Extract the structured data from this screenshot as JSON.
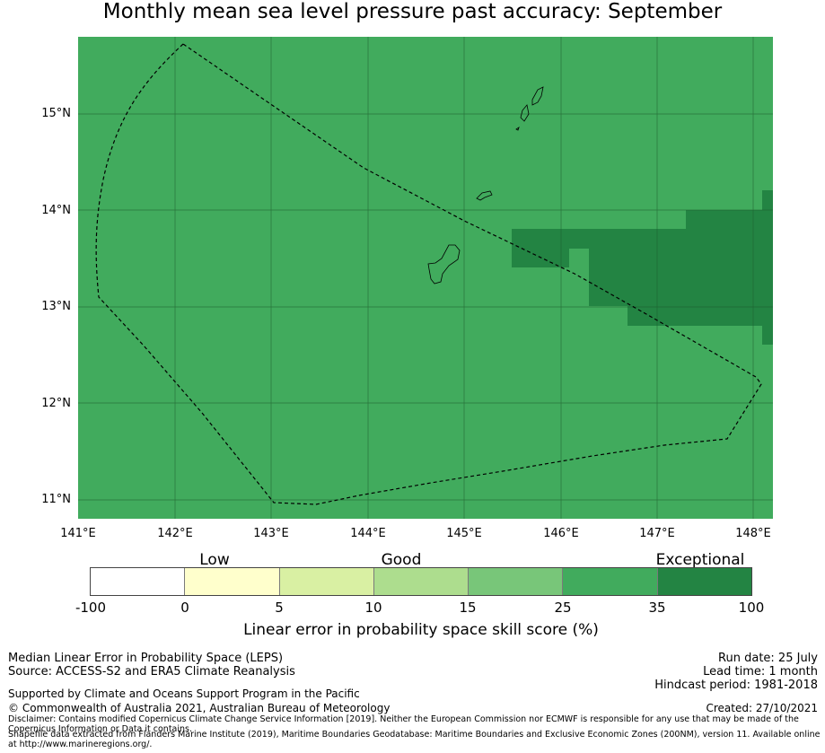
{
  "title": "Monthly mean sea level pressure past accuracy: September",
  "colors": {
    "ocean_score": "#41ab5d",
    "exceptional": "#238443",
    "grid": "#1d5a2d",
    "outline": "#000000"
  },
  "map": {
    "y_ticks": [
      "15°N",
      "14°N",
      "13°N",
      "12°N",
      "11°N"
    ],
    "x_ticks": [
      "141°E",
      "142°E",
      "143°E",
      "144°E",
      "145°E",
      "146°E",
      "147°E",
      "148°E"
    ],
    "lon_range": [
      141,
      148.2
    ],
    "lat_range": [
      10.8,
      15.8
    ],
    "legend_scale": "Linear error in probability space skill score (%)"
  },
  "colorbar": {
    "categories": [
      "Low",
      "Good",
      "Exceptional"
    ],
    "ticks": [
      "-100",
      "0",
      "5",
      "10",
      "15",
      "25",
      "35",
      "100"
    ],
    "colors": [
      "#ffffff",
      "#ffffcc",
      "#d9f0a3",
      "#addd8e",
      "#78c679",
      "#41ab5d",
      "#238443"
    ],
    "label": "Linear error in probability space skill score (%)"
  },
  "footer": {
    "left_line1": "Median Linear Error in Probability Space (LEPS)",
    "left_line2": "Source: ACCESS-S2 and ERA5 Climate Reanalysis",
    "supported": "Supported by Climate and Oceans Support Program in the Pacific",
    "copyright": "© Commonwealth of Australia 2021, Australian Bureau of Meteorology",
    "run_date": "Run date: 25 July",
    "lead_time": "Lead time: 1 month",
    "hindcast": "Hindcast period: 1981-2018",
    "created": "Created: 27/10/2021",
    "disclaimer": "Disclaimer: Contains modified Copernicus Climate Change Service Information [2019]. Neither the European Commission nor ECMWF is responsible for any use that may be made of the Copernicus Information or Data it contains.",
    "shapefile": "Shapefile data extracted from Flanders Marine Institute (2019), Maritime Boundaries Geodatabase: Maritime Boundaries and Exclusive Economic Zones (200NM), version 11. Available online at http://www.marineregions.org/."
  }
}
